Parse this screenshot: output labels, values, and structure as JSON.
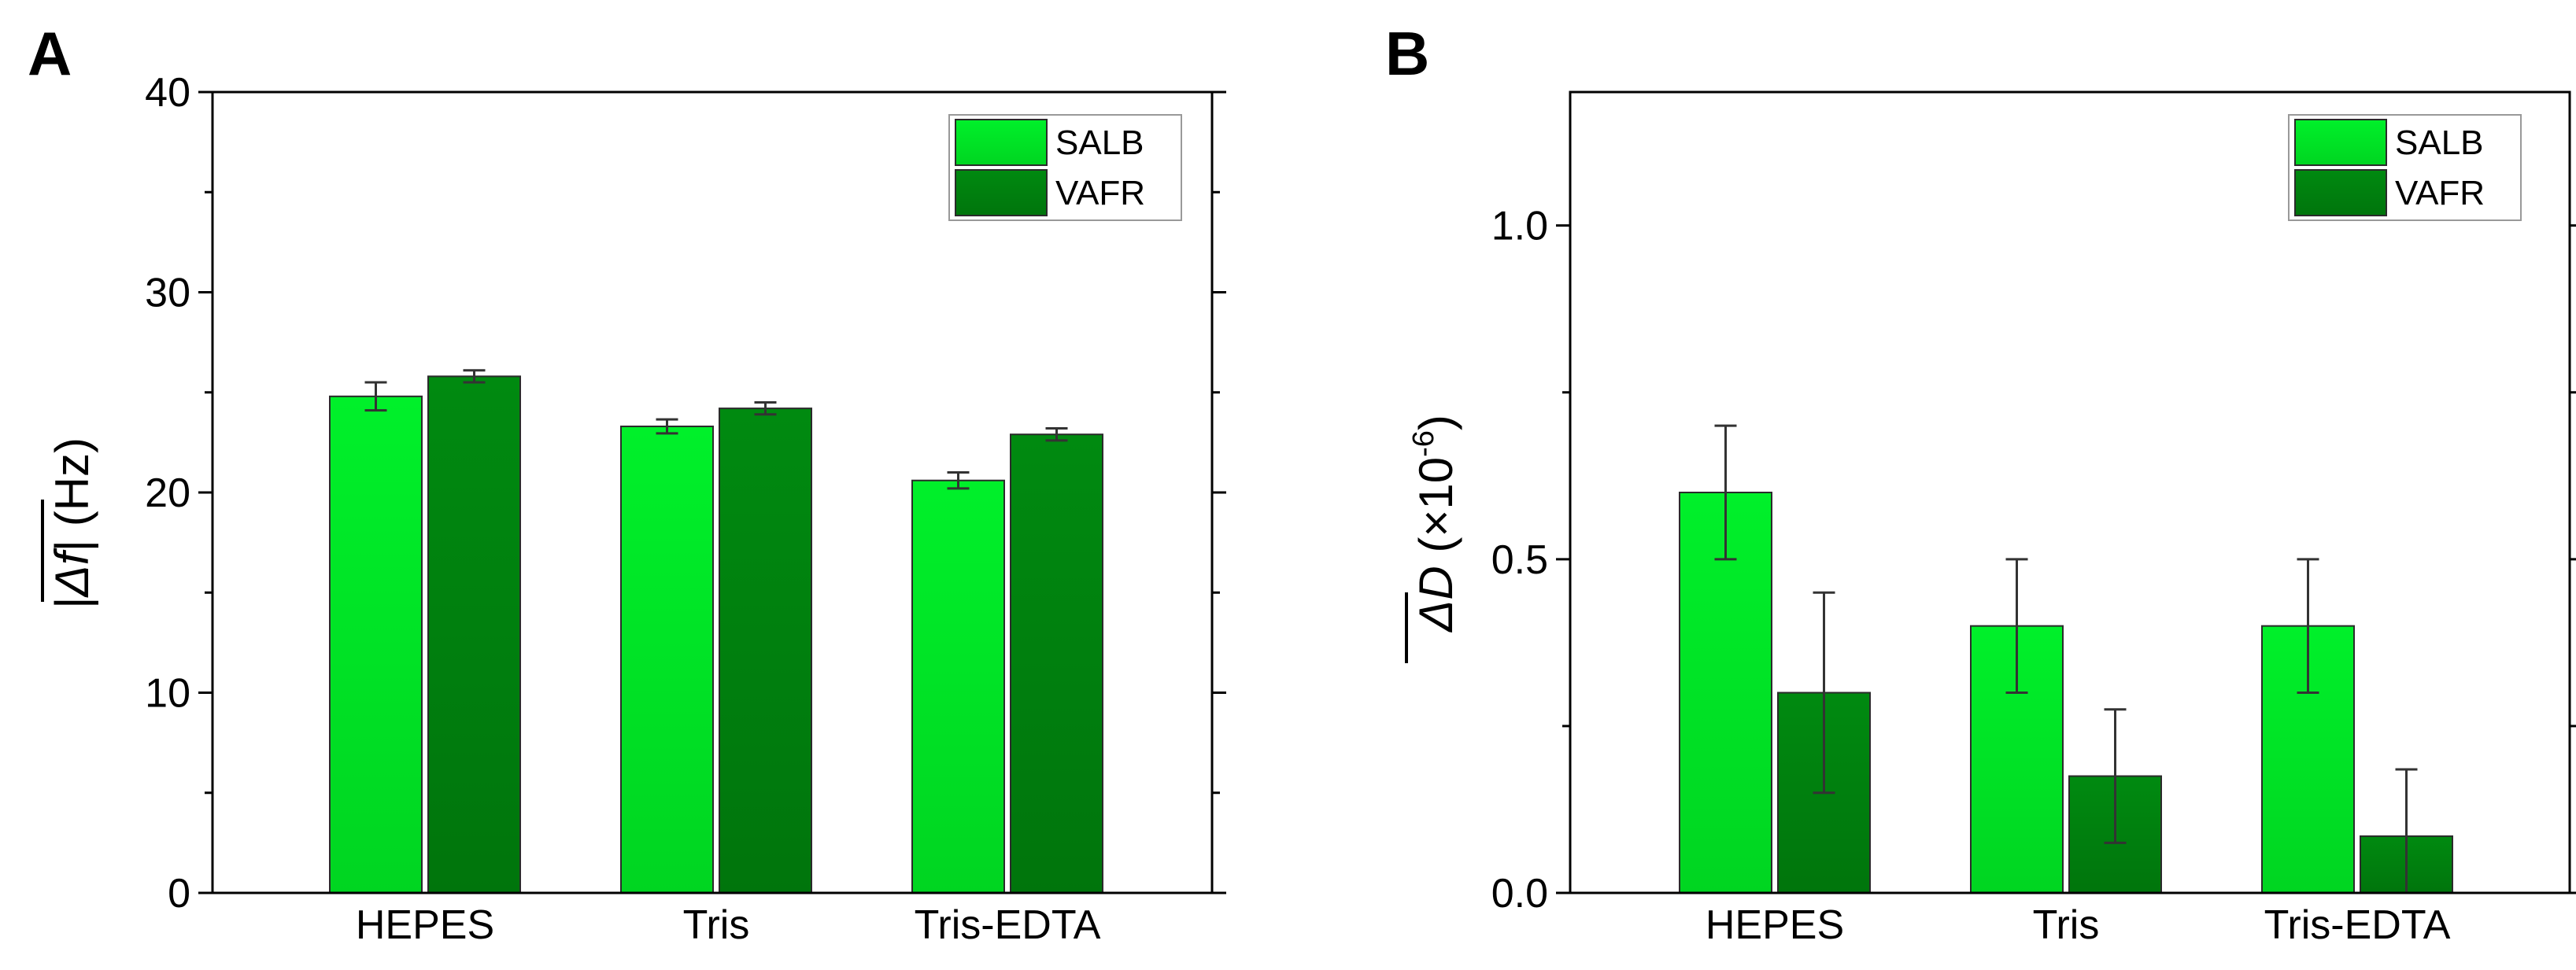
{
  "chart_data": [
    {
      "panel": "A",
      "type": "bar",
      "categories": [
        "HEPES",
        "Tris",
        "Tris-EDTA"
      ],
      "series": [
        {
          "name": "SALB",
          "values": [
            24.8,
            23.3,
            20.6
          ],
          "errors": [
            0.7,
            0.35,
            0.4
          ]
        },
        {
          "name": "VAFR",
          "values": [
            25.8,
            24.2,
            22.9
          ],
          "errors": [
            0.3,
            0.3,
            0.3
          ]
        }
      ],
      "ylabel": "|Δf| (Hz)",
      "ylabel_symbol": "Δf",
      "ylabel_unit": "(Hz)",
      "ylim": [
        0,
        40
      ],
      "yticks": [
        "0",
        "10",
        "20",
        "30",
        "40"
      ],
      "legend_position": "top-right"
    },
    {
      "panel": "B",
      "type": "bar",
      "categories": [
        "HEPES",
        "Tris",
        "Tris-EDTA"
      ],
      "series": [
        {
          "name": "SALB",
          "values": [
            0.6,
            0.4,
            0.4
          ],
          "errors": [
            0.1,
            0.1,
            0.1
          ]
        },
        {
          "name": "VAFR",
          "values": [
            0.3,
            0.175,
            0.085
          ],
          "errors": [
            0.15,
            0.1,
            0.1
          ]
        }
      ],
      "ylabel": "ΔD (×10⁻⁶)",
      "ylabel_symbol": "ΔD",
      "ylabel_unit": "(×10",
      "ylabel_exp": "-6",
      "ylabel_close": ")",
      "ylim": [
        0,
        1.2
      ],
      "yticks": [
        "0.0",
        "0.5",
        "1.0"
      ],
      "legend_position": "top-right"
    }
  ],
  "colors": {
    "salb_top": "#00f02a",
    "salb_bottom": "#00d521",
    "vafr_top": "#008a10",
    "vafr_bottom": "#00750c",
    "axis": "#000000",
    "error_bar": "#333333"
  }
}
